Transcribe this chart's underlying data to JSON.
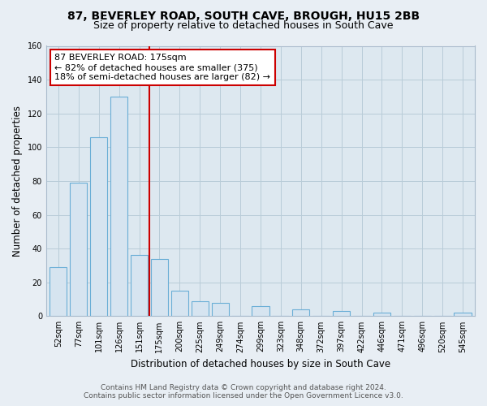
{
  "title": "87, BEVERLEY ROAD, SOUTH CAVE, BROUGH, HU15 2BB",
  "subtitle": "Size of property relative to detached houses in South Cave",
  "xlabel": "Distribution of detached houses by size in South Cave",
  "ylabel": "Number of detached properties",
  "bar_labels": [
    "52sqm",
    "77sqm",
    "101sqm",
    "126sqm",
    "151sqm",
    "175sqm",
    "200sqm",
    "225sqm",
    "249sqm",
    "274sqm",
    "299sqm",
    "323sqm",
    "348sqm",
    "372sqm",
    "397sqm",
    "422sqm",
    "446sqm",
    "471sqm",
    "496sqm",
    "520sqm",
    "545sqm"
  ],
  "bar_values": [
    29,
    79,
    106,
    130,
    36,
    34,
    15,
    9,
    8,
    0,
    6,
    0,
    4,
    0,
    3,
    0,
    2,
    0,
    0,
    0,
    2
  ],
  "bar_color": "#d6e4f0",
  "bar_edge_color": "#6aaed6",
  "highlight_line_index": 5,
  "highlight_line_color": "#cc0000",
  "annotation_line1": "87 BEVERLEY ROAD: 175sqm",
  "annotation_line2": "← 82% of detached houses are smaller (375)",
  "annotation_line3": "18% of semi-detached houses are larger (82) →",
  "annotation_box_color": "#ffffff",
  "annotation_box_edge": "#cc0000",
  "ylim": [
    0,
    160
  ],
  "yticks": [
    0,
    20,
    40,
    60,
    80,
    100,
    120,
    140,
    160
  ],
  "footer_line1": "Contains HM Land Registry data © Crown copyright and database right 2024.",
  "footer_line2": "Contains public sector information licensed under the Open Government Licence v3.0.",
  "bg_color": "#e8eef4",
  "plot_bg_color": "#dde8f0",
  "grid_color": "#b8ccd8",
  "title_fontsize": 10,
  "subtitle_fontsize": 9,
  "axis_label_fontsize": 8.5,
  "tick_fontsize": 7,
  "annotation_fontsize": 8,
  "footer_fontsize": 6.5
}
